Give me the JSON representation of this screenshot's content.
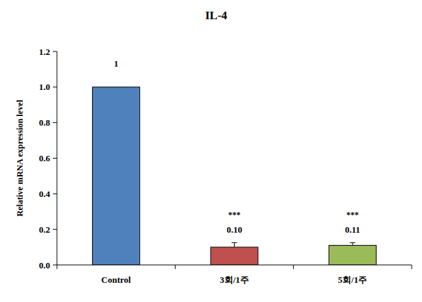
{
  "chart_data": {
    "type": "bar",
    "title": "IL-4",
    "y_label": "Relative mRNA expression level",
    "categories": [
      "Control",
      "3회/1주",
      "5회/1주"
    ],
    "values": [
      1,
      0.1,
      0.11
    ],
    "value_labels": [
      "1",
      "0.10",
      "0.11"
    ],
    "errors": [
      null,
      0.025,
      0.015
    ],
    "significance": [
      null,
      "***",
      "***"
    ],
    "colors": [
      "#4f81bd",
      "#c0504d",
      "#9bbb59"
    ],
    "ylim": [
      0,
      1.2
    ],
    "yticks": [
      {
        "value": 0,
        "label": "0.0"
      },
      0.2,
      0.4,
      0.6,
      0.8,
      {
        "value": 1,
        "label": "1.0"
      },
      1.2
    ],
    "grid": false,
    "data_labels": true
  }
}
